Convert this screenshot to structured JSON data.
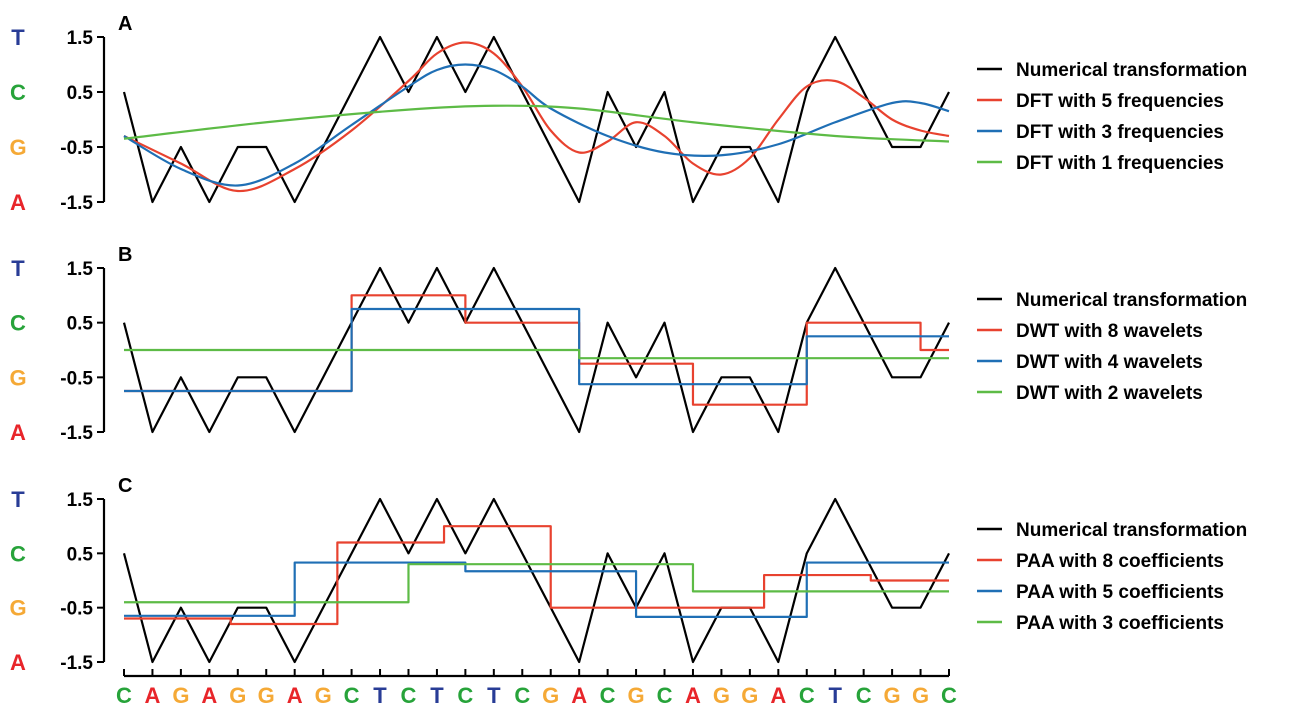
{
  "colors": {
    "T": "#283c96",
    "C": "#27a33a",
    "G": "#f5a936",
    "A": "#e8252a"
  },
  "y_levels": [
    {
      "base": "T",
      "label": "1.5",
      "value": 1.5
    },
    {
      "base": "C",
      "label": "0.5",
      "value": 0.5
    },
    {
      "base": "G",
      "label": "-0.5",
      "value": -0.5
    },
    {
      "base": "A",
      "label": "-1.5",
      "value": -1.5
    }
  ],
  "sequence": [
    "C",
    "A",
    "G",
    "A",
    "G",
    "G",
    "A",
    "G",
    "C",
    "T",
    "C",
    "T",
    "C",
    "T",
    "C",
    "G",
    "A",
    "C",
    "G",
    "C",
    "A",
    "G",
    "G",
    "A",
    "C",
    "T",
    "C",
    "G",
    "G",
    "C"
  ],
  "chart_data": [
    {
      "panel": "A",
      "type": "line",
      "ylim": [
        -1.5,
        1.5
      ],
      "x_range": [
        0,
        29
      ],
      "legend_placement": "right",
      "series": [
        {
          "name": "Numerical transformation",
          "color": "#000000",
          "kind": "zigzag"
        },
        {
          "name": "DFT with 5 frequencies",
          "color": "#e8422f",
          "kind": "curve",
          "points": [
            [
              0,
              -0.3
            ],
            [
              2,
              -0.8
            ],
            [
              4,
              -1.3
            ],
            [
              6,
              -0.9
            ],
            [
              8,
              -0.2
            ],
            [
              10,
              0.7
            ],
            [
              11,
              1.2
            ],
            [
              12,
              1.4
            ],
            [
              13,
              1.2
            ],
            [
              14,
              0.6
            ],
            [
              15,
              -0.2
            ],
            [
              16,
              -0.6
            ],
            [
              17,
              -0.4
            ],
            [
              18,
              -0.05
            ],
            [
              19,
              -0.3
            ],
            [
              20,
              -0.8
            ],
            [
              21,
              -1.0
            ],
            [
              22,
              -0.7
            ],
            [
              23,
              0.0
            ],
            [
              24,
              0.6
            ],
            [
              25,
              0.7
            ],
            [
              26,
              0.4
            ],
            [
              27,
              0.0
            ],
            [
              28,
              -0.2
            ],
            [
              29,
              -0.3
            ]
          ]
        },
        {
          "name": "DFT with 3 frequencies",
          "color": "#1f6fb5",
          "kind": "curve",
          "points": [
            [
              0,
              -0.3
            ],
            [
              2,
              -0.9
            ],
            [
              4,
              -1.2
            ],
            [
              6,
              -0.8
            ],
            [
              8,
              -0.1
            ],
            [
              10,
              0.6
            ],
            [
              11,
              0.9
            ],
            [
              12,
              1.0
            ],
            [
              13,
              0.9
            ],
            [
              14,
              0.6
            ],
            [
              15,
              0.2
            ],
            [
              17,
              -0.3
            ],
            [
              19,
              -0.6
            ],
            [
              21,
              -0.65
            ],
            [
              23,
              -0.45
            ],
            [
              25,
              -0.05
            ],
            [
              27,
              0.3
            ],
            [
              28,
              0.3
            ],
            [
              29,
              0.15
            ]
          ]
        },
        {
          "name": "DFT with 1 frequencies",
          "color": "#5dbb46",
          "kind": "curve",
          "points": [
            [
              0,
              -0.35
            ],
            [
              5,
              -0.05
            ],
            [
              10,
              0.18
            ],
            [
              13,
              0.25
            ],
            [
              16,
              0.2
            ],
            [
              20,
              -0.05
            ],
            [
              25,
              -0.3
            ],
            [
              29,
              -0.4
            ]
          ]
        }
      ]
    },
    {
      "panel": "B",
      "type": "line",
      "ylim": [
        -1.5,
        1.5
      ],
      "x_range": [
        0,
        29
      ],
      "legend_placement": "right",
      "series": [
        {
          "name": "Numerical transformation",
          "color": "#000000",
          "kind": "zigzag"
        },
        {
          "name": "DWT with 8 wavelets",
          "color": "#e8422f",
          "kind": "step",
          "steps": [
            [
              0,
              8,
              -0.75
            ],
            [
              8,
              12,
              1.0
            ],
            [
              12,
              16,
              0.5
            ],
            [
              16,
              20,
              -0.25
            ],
            [
              20,
              24,
              -1.0
            ],
            [
              24,
              28,
              0.5
            ],
            [
              28,
              29,
              0.0
            ]
          ]
        },
        {
          "name": "DWT with 4 wavelets",
          "color": "#1f6fb5",
          "kind": "step",
          "steps": [
            [
              0,
              8,
              -0.75
            ],
            [
              8,
              16,
              0.75
            ],
            [
              16,
              24,
              -0.625
            ],
            [
              24,
              29,
              0.25
            ]
          ]
        },
        {
          "name": "DWT with 2 wavelets",
          "color": "#5dbb46",
          "kind": "step",
          "steps": [
            [
              0,
              16,
              0.0
            ],
            [
              16,
              29,
              -0.15
            ]
          ]
        }
      ]
    },
    {
      "panel": "C",
      "type": "line",
      "ylim": [
        -1.5,
        1.5
      ],
      "x_range": [
        0,
        29
      ],
      "legend_placement": "right",
      "series": [
        {
          "name": "Numerical transformation",
          "color": "#000000",
          "kind": "zigzag"
        },
        {
          "name": "PAA with 8 coefficients",
          "color": "#e8422f",
          "kind": "step",
          "steps": [
            [
              0,
              3.75,
              -0.7
            ],
            [
              3.75,
              7.5,
              -0.8
            ],
            [
              7.5,
              11.25,
              0.7
            ],
            [
              11.25,
              15,
              1.0
            ],
            [
              15,
              18.75,
              -0.5
            ],
            [
              18.75,
              22.5,
              -0.5
            ],
            [
              22.5,
              26.25,
              0.1
            ],
            [
              26.25,
              29,
              0.0
            ]
          ]
        },
        {
          "name": "PAA with 5 coefficients",
          "color": "#1f6fb5",
          "kind": "step",
          "steps": [
            [
              0,
              6,
              -0.65
            ],
            [
              6,
              12,
              0.33
            ],
            [
              12,
              18,
              0.17
            ],
            [
              18,
              24,
              -0.67
            ],
            [
              24,
              29,
              0.33
            ]
          ]
        },
        {
          "name": "PAA with 3 coefficients",
          "color": "#5dbb46",
          "kind": "step",
          "steps": [
            [
              0,
              10,
              -0.4
            ],
            [
              10,
              20,
              0.3
            ],
            [
              20,
              29,
              -0.2
            ]
          ]
        }
      ]
    }
  ]
}
